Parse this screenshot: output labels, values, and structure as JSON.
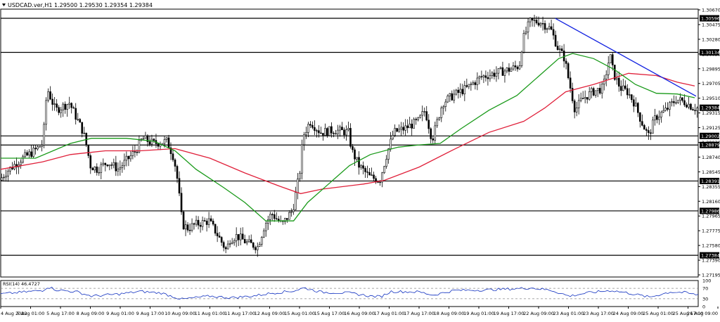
{
  "header": {
    "symbol_line": "USDCAD.ver,H1  1.29500 1.29530 1.29354 1.29384"
  },
  "rsi": {
    "label": "RSI(14) 46.4727",
    "levels": [
      "100",
      "70",
      "30",
      "0"
    ],
    "overbought": 70,
    "oversold": 30
  },
  "price_axis": {
    "ticks": [
      "1.30670",
      "1.30475",
      "1.30280",
      "1.30090",
      "1.29895",
      "1.29705",
      "1.29510",
      "1.29315",
      "1.29125",
      "1.28930",
      "1.28740",
      "1.28545",
      "1.28355",
      "1.28160",
      "1.27965",
      "1.27775",
      "1.27580",
      "1.27390",
      "1.27195"
    ],
    "current_price": "1.29384"
  },
  "time_axis": {
    "labels": [
      "4 Aug 2022",
      "5 Aug 01:00",
      "5 Aug 17:00",
      "8 Aug 09:00",
      "9 Aug 01:00",
      "9 Aug 17:00",
      "10 Aug 09:00",
      "11 Aug 01:00",
      "11 Aug 17:00",
      "12 Aug 09:00",
      "15 Aug 01:00",
      "15 Aug 17:00",
      "16 Aug 09:00",
      "17 Aug 01:00",
      "17 Aug 17:00",
      "18 Aug 09:00",
      "19 Aug 01:00",
      "19 Aug 17:00",
      "22 Aug 09:00",
      "23 Aug 01:00",
      "23 Aug 17:00",
      "24 Aug 09:00",
      "25 Aug 01:00",
      "25 Aug 17:00",
      "26 Aug 09:00"
    ]
  },
  "colors": {
    "candle": "#000000",
    "ma_fast": "#1a9a1a",
    "ma_slow": "#e0203a",
    "trendline": "#1020e0",
    "rsi": "#1030c0"
  },
  "chart_data": {
    "type": "candlestick",
    "title": "USDCAD.ver,H1",
    "y_range": [
      1.2709,
      1.3072
    ],
    "horizontal_levels": [
      {
        "label": "1.30596",
        "value": 1.30596
      },
      {
        "label": "1.30134",
        "value": 1.30134
      },
      {
        "label": "1.29002",
        "value": 1.29002
      },
      {
        "label": "1.28879",
        "value": 1.28879
      },
      {
        "label": "1.28391",
        "value": 1.28391
      },
      {
        "label": "1.27986",
        "value": 1.27986
      },
      {
        "label": "1.27384",
        "value": 1.27384
      }
    ],
    "trendline": {
      "from": [
        0.795,
        1.30596
      ],
      "to": [
        0.997,
        1.2954
      ]
    },
    "price_path": [
      [
        0.0,
        1.284
      ],
      [
        0.01,
        1.2852
      ],
      [
        0.03,
        1.2868
      ],
      [
        0.05,
        1.288
      ],
      [
        0.062,
        1.289
      ],
      [
        0.068,
        1.2965
      ],
      [
        0.072,
        1.2955
      ],
      [
        0.08,
        1.2935
      ],
      [
        0.1,
        1.2945
      ],
      [
        0.11,
        1.2925
      ],
      [
        0.12,
        1.2905
      ],
      [
        0.125,
        1.2885
      ],
      [
        0.13,
        1.286
      ],
      [
        0.14,
        1.2855
      ],
      [
        0.155,
        1.2865
      ],
      [
        0.17,
        1.2855
      ],
      [
        0.185,
        1.287
      ],
      [
        0.195,
        1.288
      ],
      [
        0.205,
        1.2897
      ],
      [
        0.22,
        1.289
      ],
      [
        0.24,
        1.2893
      ],
      [
        0.25,
        1.287
      ],
      [
        0.255,
        1.284
      ],
      [
        0.262,
        1.278
      ],
      [
        0.27,
        1.2775
      ],
      [
        0.28,
        1.278
      ],
      [
        0.3,
        1.2785
      ],
      [
        0.31,
        1.277
      ],
      [
        0.325,
        1.2745
      ],
      [
        0.33,
        1.276
      ],
      [
        0.34,
        1.2765
      ],
      [
        0.355,
        1.2755
      ],
      [
        0.37,
        1.275
      ],
      [
        0.38,
        1.278
      ],
      [
        0.39,
        1.2795
      ],
      [
        0.405,
        1.278
      ],
      [
        0.42,
        1.28
      ],
      [
        0.43,
        1.285
      ],
      [
        0.435,
        1.29
      ],
      [
        0.445,
        1.292
      ],
      [
        0.46,
        1.2905
      ],
      [
        0.48,
        1.2908
      ],
      [
        0.5,
        1.2905
      ],
      [
        0.505,
        1.288
      ],
      [
        0.515,
        1.286
      ],
      [
        0.53,
        1.2845
      ],
      [
        0.545,
        1.284
      ],
      [
        0.555,
        1.2875
      ],
      [
        0.565,
        1.2905
      ],
      [
        0.58,
        1.291
      ],
      [
        0.6,
        1.292
      ],
      [
        0.61,
        1.2935
      ],
      [
        0.62,
        1.2895
      ],
      [
        0.635,
        1.2945
      ],
      [
        0.65,
        1.2955
      ],
      [
        0.67,
        1.2965
      ],
      [
        0.69,
        1.298
      ],
      [
        0.71,
        1.2985
      ],
      [
        0.73,
        1.299
      ],
      [
        0.745,
        1.2995
      ],
      [
        0.75,
        1.303
      ],
      [
        0.76,
        1.3055
      ],
      [
        0.775,
        1.3055
      ],
      [
        0.79,
        1.3045
      ],
      [
        0.8,
        1.302
      ],
      [
        0.81,
        1.3005
      ],
      [
        0.815,
        1.298
      ],
      [
        0.825,
        1.2935
      ],
      [
        0.835,
        1.295
      ],
      [
        0.85,
        1.296
      ],
      [
        0.865,
        1.2965
      ],
      [
        0.875,
        1.301
      ],
      [
        0.88,
        1.2985
      ],
      [
        0.89,
        1.2965
      ],
      [
        0.9,
        1.296
      ],
      [
        0.91,
        1.2945
      ],
      [
        0.92,
        1.292
      ],
      [
        0.93,
        1.29
      ],
      [
        0.94,
        1.2925
      ],
      [
        0.955,
        1.2935
      ],
      [
        0.97,
        1.295
      ],
      [
        0.985,
        1.2945
      ],
      [
        0.995,
        1.2938
      ]
    ],
    "ma_fast_path": [
      [
        0.0,
        1.287
      ],
      [
        0.05,
        1.287
      ],
      [
        0.1,
        1.289
      ],
      [
        0.13,
        1.2897
      ],
      [
        0.18,
        1.2897
      ],
      [
        0.22,
        1.2893
      ],
      [
        0.25,
        1.288
      ],
      [
        0.28,
        1.2855
      ],
      [
        0.32,
        1.283
      ],
      [
        0.35,
        1.281
      ],
      [
        0.38,
        1.2785
      ],
      [
        0.42,
        1.2785
      ],
      [
        0.44,
        1.281
      ],
      [
        0.47,
        1.2835
      ],
      [
        0.5,
        1.286
      ],
      [
        0.53,
        1.2875
      ],
      [
        0.57,
        1.2885
      ],
      [
        0.6,
        1.2888
      ],
      [
        0.63,
        1.289
      ],
      [
        0.66,
        1.291
      ],
      [
        0.7,
        1.2935
      ],
      [
        0.74,
        1.2955
      ],
      [
        0.77,
        1.298
      ],
      [
        0.8,
        1.3005
      ],
      [
        0.82,
        1.3012
      ],
      [
        0.85,
        1.3005
      ],
      [
        0.88,
        1.299
      ],
      [
        0.91,
        1.297
      ],
      [
        0.94,
        1.2958
      ],
      [
        0.97,
        1.2957
      ],
      [
        0.995,
        1.2952
      ]
    ],
    "ma_slow_path": [
      [
        0.0,
        1.2855
      ],
      [
        0.06,
        1.2865
      ],
      [
        0.1,
        1.2875
      ],
      [
        0.15,
        1.288
      ],
      [
        0.2,
        1.288
      ],
      [
        0.25,
        1.2883
      ],
      [
        0.3,
        1.287
      ],
      [
        0.35,
        1.285
      ],
      [
        0.4,
        1.2832
      ],
      [
        0.43,
        1.2822
      ],
      [
        0.46,
        1.2828
      ],
      [
        0.52,
        1.2835
      ],
      [
        0.55,
        1.284
      ],
      [
        0.6,
        1.2858
      ],
      [
        0.65,
        1.2882
      ],
      [
        0.7,
        1.2905
      ],
      [
        0.75,
        1.292
      ],
      [
        0.78,
        1.2938
      ],
      [
        0.81,
        1.296
      ],
      [
        0.85,
        1.297
      ],
      [
        0.9,
        1.2985
      ],
      [
        0.94,
        1.2982
      ],
      [
        0.97,
        1.2973
      ],
      [
        0.995,
        1.2968
      ]
    ],
    "rsi_path": [
      [
        0.0,
        48
      ],
      [
        0.03,
        55
      ],
      [
        0.06,
        62
      ],
      [
        0.068,
        76
      ],
      [
        0.08,
        64
      ],
      [
        0.11,
        56
      ],
      [
        0.13,
        40
      ],
      [
        0.17,
        48
      ],
      [
        0.2,
        58
      ],
      [
        0.23,
        52
      ],
      [
        0.26,
        28
      ],
      [
        0.3,
        40
      ],
      [
        0.33,
        34
      ],
      [
        0.36,
        40
      ],
      [
        0.39,
        52
      ],
      [
        0.42,
        60
      ],
      [
        0.435,
        72
      ],
      [
        0.46,
        55
      ],
      [
        0.5,
        52
      ],
      [
        0.53,
        40
      ],
      [
        0.545,
        38
      ],
      [
        0.56,
        58
      ],
      [
        0.6,
        56
      ],
      [
        0.62,
        44
      ],
      [
        0.65,
        62
      ],
      [
        0.7,
        64
      ],
      [
        0.75,
        70
      ],
      [
        0.76,
        72
      ],
      [
        0.79,
        62
      ],
      [
        0.815,
        40
      ],
      [
        0.84,
        52
      ],
      [
        0.875,
        62
      ],
      [
        0.9,
        52
      ],
      [
        0.93,
        36
      ],
      [
        0.96,
        56
      ],
      [
        0.98,
        54
      ],
      [
        0.995,
        46
      ]
    ]
  }
}
